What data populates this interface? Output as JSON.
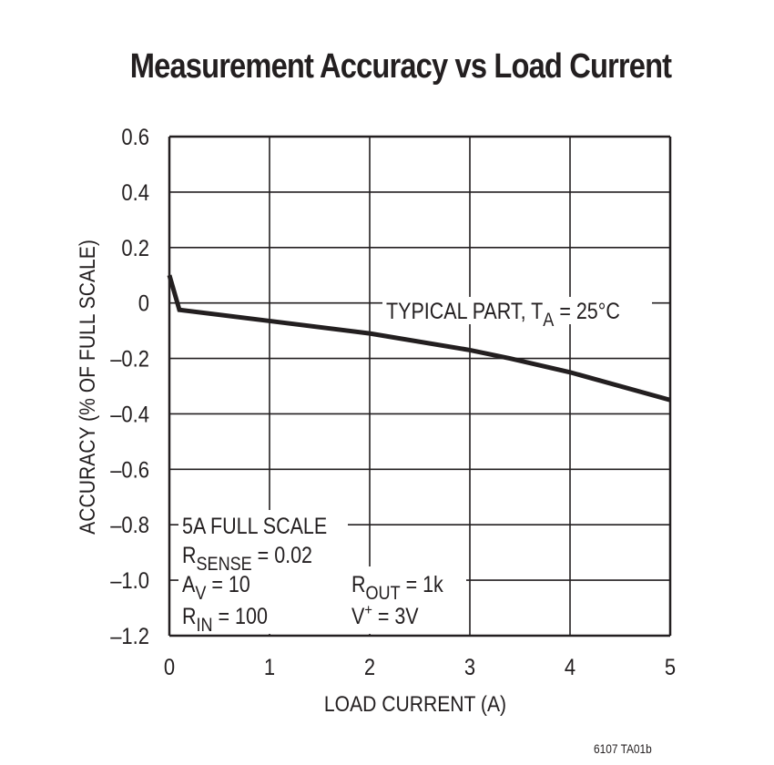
{
  "chart_data": {
    "type": "line",
    "title": "Measurement Accuracy vs Load Current",
    "xlabel": "LOAD CURRENT (A)",
    "ylabel": "ACCURACY (% OF FULL SCALE)",
    "xlim": [
      0,
      5
    ],
    "ylim": [
      -1.2,
      0.6
    ],
    "x_ticks": [
      "0",
      "1",
      "2",
      "3",
      "4",
      "5"
    ],
    "y_ticks": [
      "0.6",
      "0.4",
      "0.2",
      "0",
      "–0.2",
      "–0.4",
      "–0.6",
      "–0.8",
      "–1.0",
      "–1.2"
    ],
    "grid": true,
    "series": [
      {
        "name": "TYPICAL PART, TA = 25°C",
        "x": [
          0,
          0.1,
          1,
          2,
          3,
          3.4,
          4,
          5
        ],
        "y": [
          0.1,
          -0.025,
          -0.065,
          -0.11,
          -0.17,
          -0.2,
          -0.25,
          -0.35
        ]
      }
    ],
    "annotations": [
      {
        "text": "TYPICAL PART, T",
        "sub": "A",
        "after": " = 25°C"
      },
      {
        "text": "5A FULL SCALE"
      },
      {
        "text": "R",
        "sub": "SENSE",
        "after": " = 0.02"
      },
      {
        "text": "A",
        "sub": "V",
        "after": " = 10"
      },
      {
        "text": "R",
        "sub": "IN",
        "after": " = 100"
      },
      {
        "text": "R",
        "sub": "OUT",
        "after": " = 1k"
      },
      {
        "text": "V",
        "sup": "+",
        "after": " = 3V"
      }
    ]
  },
  "footer": "6107 TA01b"
}
